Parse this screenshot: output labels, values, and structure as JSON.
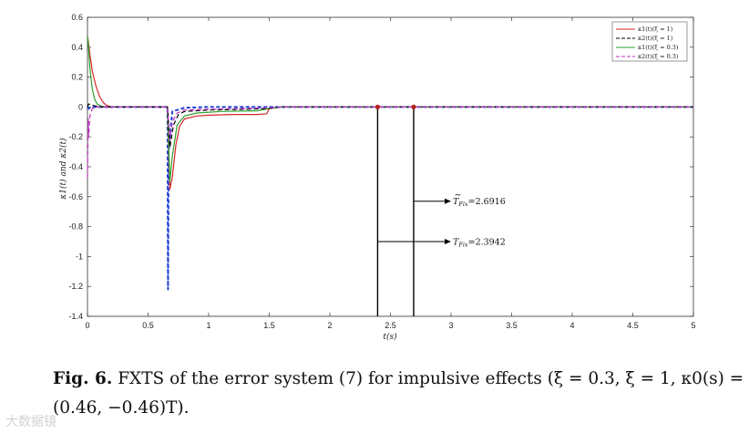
{
  "chart_data": {
    "type": "line",
    "xlabel": "t(s)",
    "ylabel": "κ1(t) and κ2(t)",
    "xlim": [
      0,
      5
    ],
    "ylim": [
      -1.4,
      0.6
    ],
    "xticks": [
      "0",
      "0.5",
      "1",
      "1.5",
      "2",
      "2.5",
      "3",
      "3.5",
      "4",
      "4.5",
      "5"
    ],
    "yticks": [
      "0.6",
      "0.4",
      "0.2",
      "0",
      "-0.2",
      "-0.4",
      "-0.6",
      "-0.8",
      "-1",
      "-1.2",
      "-1.4"
    ],
    "legend_position": "top-right",
    "grid": false,
    "series": [
      {
        "name": "κ1(t)(ξ = 1)",
        "color": "#d62728",
        "dash": "solid",
        "x": [
          0,
          0.005,
          0.02,
          0.04,
          0.07,
          0.1,
          0.13,
          0.16,
          0.2,
          0.3,
          0.6,
          0.66,
          0.665,
          0.68,
          0.7,
          0.73,
          0.76,
          0.8,
          0.9,
          1.0,
          1.2,
          1.4,
          1.48,
          1.5,
          1.6,
          2,
          3,
          4,
          5
        ],
        "y": [
          0.47,
          0.45,
          0.35,
          0.24,
          0.14,
          0.07,
          0.03,
          0.01,
          0,
          0,
          0,
          0,
          -0.16,
          -0.55,
          -0.47,
          -0.25,
          -0.13,
          -0.08,
          -0.06,
          -0.055,
          -0.05,
          -0.05,
          -0.045,
          -0.01,
          0,
          0,
          0,
          0,
          0
        ]
      },
      {
        "name": "κ2(t)(ξ = 1)",
        "color": "#000000",
        "dash": "dashed",
        "x": [
          0,
          0.01,
          0.03,
          0.05,
          0.08,
          0.12,
          0.2,
          0.6,
          0.66,
          0.665,
          0.68,
          0.71,
          0.75,
          0.8,
          1.0,
          1.3,
          1.5,
          1.6,
          2,
          3,
          4,
          5
        ],
        "y": [
          0,
          0.02,
          0.015,
          0.01,
          0.005,
          0,
          0,
          0,
          0,
          -0.05,
          -0.27,
          -0.12,
          -0.05,
          -0.03,
          -0.02,
          -0.015,
          -0.01,
          0,
          0,
          0,
          0,
          0
        ]
      },
      {
        "name": "κ1(t)(ξ = 0.3)",
        "color": "#2ca02c",
        "dash": "solid",
        "x": [
          0,
          0.005,
          0.02,
          0.04,
          0.06,
          0.08,
          0.1,
          0.15,
          0.6,
          0.66,
          0.665,
          0.68,
          0.7,
          0.74,
          0.8,
          0.9,
          1.1,
          1.4,
          1.5,
          1.6,
          2,
          3,
          4,
          5
        ],
        "y": [
          0.47,
          0.44,
          0.26,
          0.12,
          0.05,
          0.02,
          0.01,
          0,
          0,
          0,
          -0.12,
          -0.5,
          -0.33,
          -0.12,
          -0.06,
          -0.04,
          -0.03,
          -0.025,
          -0.01,
          0,
          0,
          0,
          0,
          0
        ]
      },
      {
        "name": "κ2(t)(ξ = 0.3)",
        "color": "#c030c0",
        "dash": "dashed",
        "x": [
          0,
          0.003,
          0.006,
          0.01,
          0.02,
          0.04,
          0.06,
          0.1,
          0.6,
          0.66,
          0.665,
          0.68,
          0.7,
          0.74,
          0.8,
          1.0,
          1.3,
          1.5,
          1.6,
          2,
          3,
          4,
          5
        ],
        "y": [
          -0.47,
          -0.28,
          -0.08,
          -0.2,
          -0.06,
          -0.01,
          0,
          0,
          0,
          0,
          -0.05,
          -0.22,
          -0.1,
          -0.04,
          -0.02,
          -0.015,
          -0.01,
          -0.005,
          0,
          0,
          0,
          0,
          0
        ]
      },
      {
        "name": "blue",
        "color": "#1f3fd6",
        "dash": "dashed",
        "legend": false,
        "x": [
          0,
          0.01,
          0.03,
          0.06,
          0.2,
          0.6,
          0.66,
          0.665,
          0.67,
          0.7,
          0.8,
          1,
          2,
          3,
          4,
          5
        ],
        "y": [
          0,
          -0.01,
          -0.005,
          0,
          0,
          0,
          0,
          -1.22,
          -0.3,
          -0.03,
          -0.005,
          0,
          0,
          0,
          0,
          0
        ]
      }
    ],
    "markers": [
      {
        "x": 2.3942,
        "label_main": "T",
        "label_sub": "Fix",
        "label_value": "=2.3942",
        "tilde": false,
        "arrow_y": -0.9
      },
      {
        "x": 2.6916,
        "label_main": "T",
        "label_sub": "Fix",
        "label_value": "=2.6916",
        "tilde": true,
        "arrow_y": -0.63
      }
    ]
  },
  "caption": {
    "figno": "Fig. 6.",
    "text": "FXTS of the error system (7) for impulsive effects (ξ = 0.3, ξ = 1, κ0(s) = (0.46, −0.46)T)."
  },
  "watermark": "大数据镜"
}
